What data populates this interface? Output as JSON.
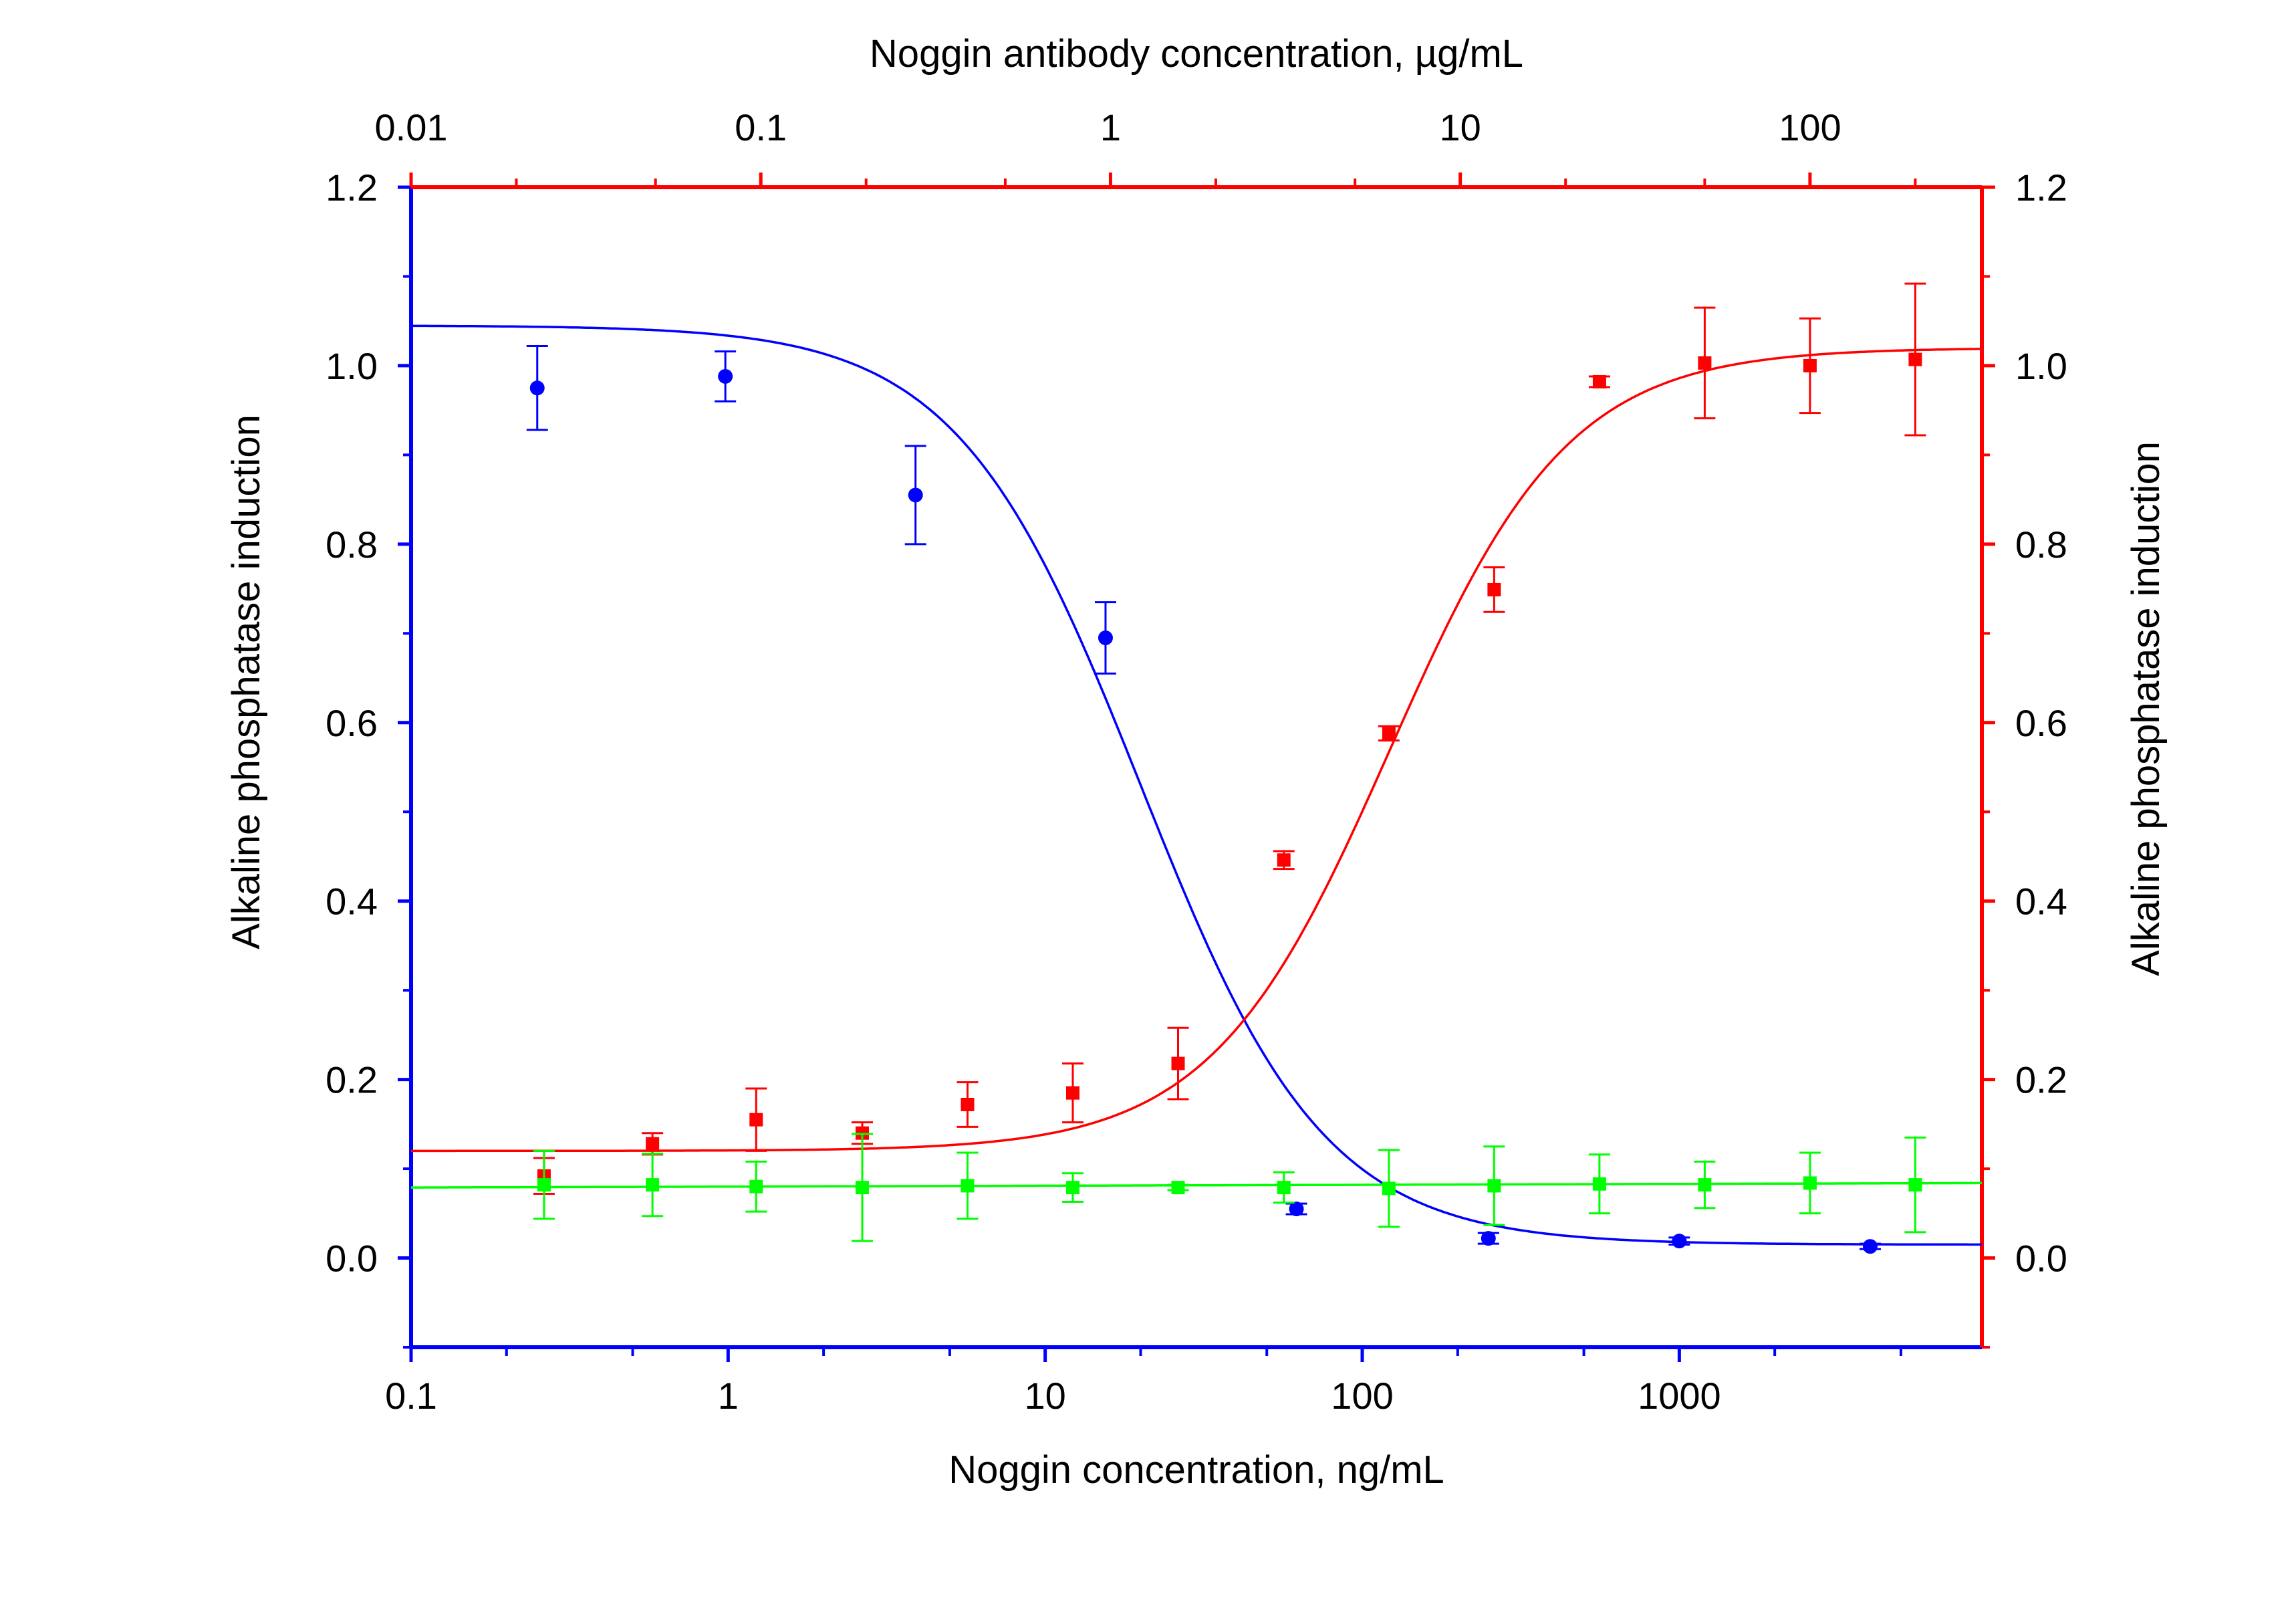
{
  "chart_data": {
    "type": "scatter",
    "title": "",
    "x_bottom": {
      "label": "Noggin concentration, ng/mL",
      "scale": "log",
      "range": [
        0.1,
        9000
      ],
      "ticks": [
        0.1,
        1,
        10,
        100,
        1000
      ],
      "tick_labels": [
        "0.1",
        "1",
        "10",
        "100",
        "1000"
      ],
      "color": "#0000ff"
    },
    "x_top": {
      "label": "Noggin antibody concentration, µg/mL",
      "scale": "log",
      "range": [
        0.01,
        310
      ],
      "ticks": [
        0.01,
        0.1,
        1,
        10,
        100
      ],
      "tick_labels": [
        "0.01",
        "0.1",
        "1",
        "10",
        "100"
      ],
      "color": "#ff0000"
    },
    "y_left": {
      "label": "Alkaline phosphatase  induction",
      "range": [
        -0.1,
        1.2
      ],
      "ticks": [
        0.0,
        0.2,
        0.4,
        0.6,
        0.8,
        1.0,
        1.2
      ],
      "tick_labels": [
        "0.0",
        "0.2",
        "0.4",
        "0.6",
        "0.8",
        "1.0",
        "1.2"
      ],
      "color": "#0000ff"
    },
    "y_right": {
      "label": "Alkaline phosphatase  induction",
      "range": [
        -0.1,
        1.2
      ],
      "ticks": [
        0.0,
        0.2,
        0.4,
        0.6,
        0.8,
        1.0,
        1.2
      ],
      "tick_labels": [
        "0.0",
        "0.2",
        "0.4",
        "0.6",
        "0.8",
        "1.0",
        "1.2"
      ],
      "color": "#ff0000"
    },
    "grid": false,
    "series": [
      {
        "axis": "bottom",
        "color": "#0000ff",
        "marker": "circle",
        "fit": {
          "type": "logistic4",
          "top": 1.045,
          "bottom": 0.015,
          "ec50": 20,
          "hill": 1.5,
          "x_range": [
            0.1,
            9000
          ]
        },
        "points": [
          {
            "x": 0.25,
            "y": 0.975,
            "err": 0.047
          },
          {
            "x": 0.98,
            "y": 0.988,
            "err": 0.028
          },
          {
            "x": 3.9,
            "y": 0.855,
            "err": 0.055
          },
          {
            "x": 15.5,
            "y": 0.695,
            "err": 0.04
          },
          {
            "x": 62,
            "y": 0.055,
            "err": 0.006
          },
          {
            "x": 250,
            "y": 0.022,
            "err": 0.006
          },
          {
            "x": 1000,
            "y": 0.019,
            "err": 0.004
          },
          {
            "x": 4000,
            "y": 0.013,
            "err": 0.003
          }
        ]
      },
      {
        "axis": "top",
        "color": "#ff0000",
        "marker": "square",
        "fit": {
          "type": "logistic4",
          "top": 0.12,
          "bottom": 1.02,
          "ec50": 6.3,
          "hill": 1.7,
          "x_range": [
            0.01,
            310
          ]
        },
        "points": [
          {
            "x": 0.024,
            "y": 0.092,
            "err": 0.02
          },
          {
            "x": 0.049,
            "y": 0.128,
            "err": 0.012
          },
          {
            "x": 0.097,
            "y": 0.155,
            "err": 0.035
          },
          {
            "x": 0.195,
            "y": 0.14,
            "err": 0.012
          },
          {
            "x": 0.39,
            "y": 0.172,
            "err": 0.025
          },
          {
            "x": 0.78,
            "y": 0.185,
            "err": 0.033
          },
          {
            "x": 1.56,
            "y": 0.218,
            "err": 0.04
          },
          {
            "x": 3.13,
            "y": 0.446,
            "err": 0.01
          },
          {
            "x": 6.25,
            "y": 0.588,
            "err": 0.008
          },
          {
            "x": 12.5,
            "y": 0.749,
            "err": 0.025
          },
          {
            "x": 25,
            "y": 0.982,
            "err": 0.006
          },
          {
            "x": 50,
            "y": 1.003,
            "err": 0.062
          },
          {
            "x": 100,
            "y": 1.0,
            "err": 0.053
          },
          {
            "x": 200,
            "y": 1.007,
            "err": 0.085
          }
        ]
      },
      {
        "axis": "top",
        "color": "#00ff00",
        "marker": "square",
        "fit": {
          "type": "linear",
          "y_start": 0.079,
          "y_end": 0.084,
          "x_range": [
            0.01,
            310
          ]
        },
        "points": [
          {
            "x": 0.024,
            "y": 0.082,
            "err": 0.038
          },
          {
            "x": 0.049,
            "y": 0.082,
            "err": 0.035
          },
          {
            "x": 0.097,
            "y": 0.08,
            "err": 0.028
          },
          {
            "x": 0.195,
            "y": 0.079,
            "err": 0.06
          },
          {
            "x": 0.39,
            "y": 0.081,
            "err": 0.037
          },
          {
            "x": 0.78,
            "y": 0.079,
            "err": 0.016
          },
          {
            "x": 1.56,
            "y": 0.079,
            "err": 0.003
          },
          {
            "x": 3.13,
            "y": 0.079,
            "err": 0.017
          },
          {
            "x": 6.25,
            "y": 0.078,
            "err": 0.043
          },
          {
            "x": 12.5,
            "y": 0.081,
            "err": 0.044
          },
          {
            "x": 25,
            "y": 0.083,
            "err": 0.033
          },
          {
            "x": 50,
            "y": 0.082,
            "err": 0.026
          },
          {
            "x": 100,
            "y": 0.084,
            "err": 0.034
          },
          {
            "x": 200,
            "y": 0.082,
            "err": 0.053
          }
        ]
      }
    ]
  }
}
